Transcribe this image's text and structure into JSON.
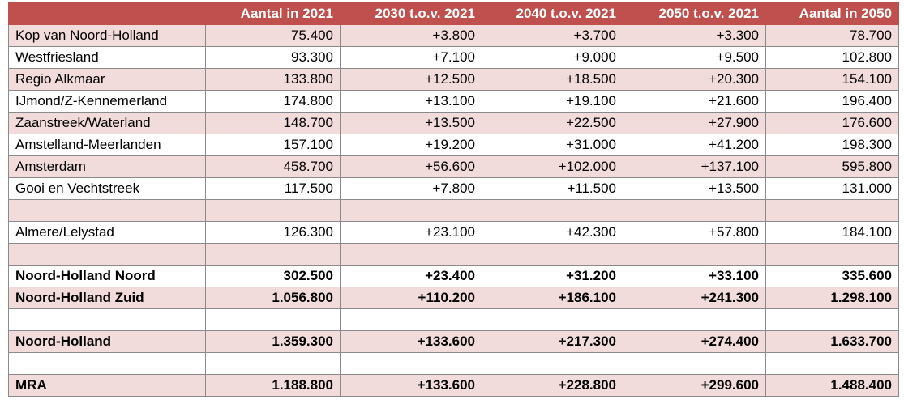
{
  "colors": {
    "header_bg": "#c0504d",
    "header_text": "#ffffff",
    "shaded_row": "#f2dcdb",
    "plain_row": "#ffffff"
  },
  "header": [
    "",
    "Aantal in 2021",
    "2030 t.o.v. 2021",
    "2040 t.o.v. 2021",
    "2050 t.o.v. 2021",
    "Aantal in 2050"
  ],
  "rows": [
    {
      "cells": [
        "Kop van Noord-Holland",
        "75.400",
        "+3.800",
        "+3.700",
        "+3.300",
        "78.700"
      ],
      "shade": true,
      "bold": false
    },
    {
      "cells": [
        "Westfriesland",
        "93.300",
        "+7.100",
        "+9.000",
        "+9.500",
        "102.800"
      ],
      "shade": false,
      "bold": false
    },
    {
      "cells": [
        "Regio Alkmaar",
        "133.800",
        "+12.500",
        "+18.500",
        "+20.300",
        "154.100"
      ],
      "shade": true,
      "bold": false
    },
    {
      "cells": [
        "IJmond/Z-Kennemerland",
        "174.800",
        "+13.100",
        "+19.100",
        "+21.600",
        "196.400"
      ],
      "shade": false,
      "bold": false
    },
    {
      "cells": [
        "Zaanstreek/Waterland",
        "148.700",
        "+13.500",
        "+22.500",
        "+27.900",
        "176.600"
      ],
      "shade": true,
      "bold": false
    },
    {
      "cells": [
        "Amstelland-Meerlanden",
        "157.100",
        "+19.200",
        "+31.000",
        "+41.200",
        "198.300"
      ],
      "shade": false,
      "bold": false
    },
    {
      "cells": [
        "Amsterdam",
        "458.700",
        "+56.600",
        "+102.000",
        "+137.100",
        "595.800"
      ],
      "shade": true,
      "bold": false
    },
    {
      "cells": [
        "Gooi en Vechtstreek",
        "117.500",
        "+7.800",
        "+11.500",
        "+13.500",
        "131.000"
      ],
      "shade": false,
      "bold": false
    },
    {
      "cells": [
        "",
        "",
        "",
        "",
        "",
        ""
      ],
      "shade": true,
      "bold": false
    },
    {
      "cells": [
        "Almere/Lelystad",
        "126.300",
        "+23.100",
        "+42.300",
        "+57.800",
        "184.100"
      ],
      "shade": false,
      "bold": false
    },
    {
      "cells": [
        "",
        "",
        "",
        "",
        "",
        ""
      ],
      "shade": true,
      "bold": false
    },
    {
      "cells": [
        "Noord-Holland Noord",
        "302.500",
        "+23.400",
        "+31.200",
        "+33.100",
        "335.600"
      ],
      "shade": false,
      "bold": true
    },
    {
      "cells": [
        "Noord-Holland Zuid",
        "1.056.800",
        "+110.200",
        "+186.100",
        "+241.300",
        "1.298.100"
      ],
      "shade": true,
      "bold": true
    },
    {
      "cells": [
        "",
        "",
        "",
        "",
        "",
        ""
      ],
      "shade": false,
      "bold": false
    },
    {
      "cells": [
        "Noord-Holland",
        "1.359.300",
        "+133.600",
        "+217.300",
        "+274.400",
        "1.633.700"
      ],
      "shade": true,
      "bold": true
    },
    {
      "cells": [
        "",
        "",
        "",
        "",
        "",
        ""
      ],
      "shade": false,
      "bold": false
    },
    {
      "cells": [
        "MRA",
        "1.188.800",
        "+133.600",
        "+228.800",
        "+299.600",
        "1.488.400"
      ],
      "shade": true,
      "bold": true
    }
  ]
}
